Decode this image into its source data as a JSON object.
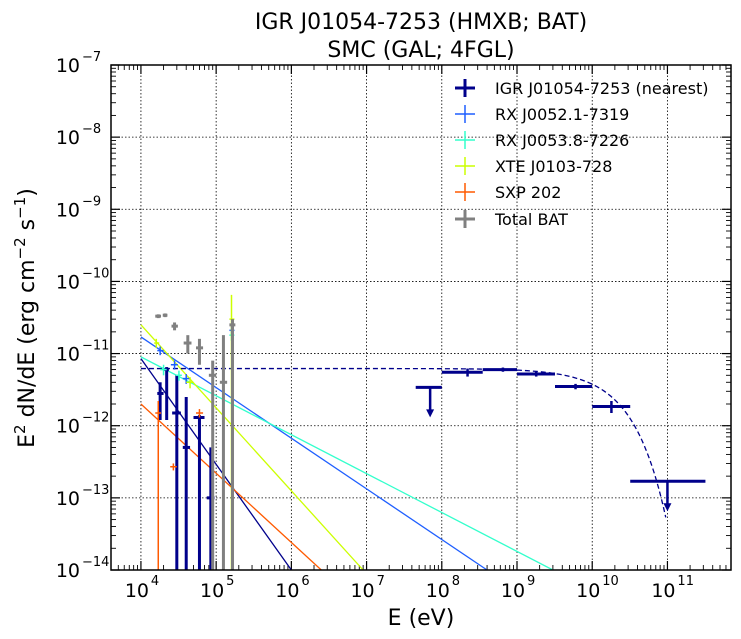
{
  "chart_data": {
    "type": "scatter",
    "title_line1": "IGR J01054-7253 (HMXB; BAT)",
    "title_line2": "SMC (GAL; 4FGL)",
    "xlabel": "E (eV)",
    "ylabel_main": "E",
    "ylabel_sup": "2",
    "ylabel_rest": " dN/dE (erg cm",
    "ylabel_sup2": "−2",
    "ylabel_rest2": " s",
    "ylabel_sup3": "−1",
    "ylabel_close": ")",
    "x_log": true,
    "y_log": true,
    "xlim": [
      4000.0,
      700000000000.0
    ],
    "ylim": [
      1e-14,
      1e-07
    ],
    "x_ticks": [
      4,
      5,
      6,
      7,
      8,
      9,
      10,
      11
    ],
    "y_ticks": [
      -14,
      -13,
      -12,
      -11,
      -10,
      -9,
      -8,
      -7
    ],
    "tick_base": "10",
    "grid": true,
    "legend_position": "top-right",
    "series": [
      {
        "name": "IGR J01054-7253 (nearest)",
        "color": "#00008b",
        "marker": "cross-bold",
        "points": [
          {
            "x": 18000,
            "y": 2.8e-12,
            "xlo": 16500,
            "xhi": 20000,
            "ylo": 1.2e-12,
            "yhi": 4e-12
          },
          {
            "x": 22000,
            "y": 6e-12,
            "xlo": 20500,
            "xhi": 23500,
            "ylo": 1.2e-12,
            "yhi": 6.5e-12
          },
          {
            "x": 30000,
            "y": 1.5e-12,
            "xlo": 26000,
            "xhi": 34000,
            "ylo": 1e-14,
            "yhi": 5e-12
          },
          {
            "x": 40000,
            "y": 5e-13,
            "xlo": 36000,
            "xhi": 45000,
            "ylo": 1e-14,
            "yhi": 2.5e-12
          },
          {
            "x": 60000,
            "y": 1.3e-12,
            "xlo": 50000,
            "xhi": 70000,
            "ylo": 1e-14,
            "yhi": 1.4e-12
          },
          {
            "x": 85000,
            "y": 1e-13,
            "xlo": 75000,
            "xhi": 95000,
            "ylo": 1e-14,
            "yhi": 5e-13
          }
        ]
      },
      {
        "name": "RX J0052.1-7319",
        "color": "#1f5fff",
        "marker": "cross",
        "points": [
          {
            "x": 18000,
            "y": 1.1e-11,
            "xlo": 16500,
            "xhi": 20000,
            "ylo": 9.5e-12,
            "yhi": 1.25e-11
          },
          {
            "x": 28000,
            "y": 7e-12,
            "xlo": 25000,
            "xhi": 31000,
            "ylo": 6e-12,
            "yhi": 8e-12
          },
          {
            "x": 40000,
            "y": 4.5e-12,
            "xlo": 36000,
            "xhi": 45000,
            "ylo": 3.8e-12,
            "yhi": 5.2e-12
          },
          {
            "x": 160000,
            "y": 2.1e-11,
            "xlo": 150000,
            "xhi": 175000,
            "ylo": 1.8e-11,
            "yhi": 2.4e-11
          }
        ]
      },
      {
        "name": "RX J0053.8-7226",
        "color": "#33ffcc",
        "marker": "cross",
        "points": [
          {
            "x": 20000,
            "y": 6e-12,
            "xlo": 18000,
            "xhi": 22000,
            "ylo": 5e-12,
            "yhi": 7e-12
          },
          {
            "x": 32000,
            "y": 5e-12,
            "xlo": 29000,
            "xhi": 35000,
            "ylo": 4.2e-12,
            "yhi": 5.8e-12
          },
          {
            "x": 160000,
            "y": 1.8e-11,
            "xlo": 150000,
            "xhi": 175000,
            "ylo": 1.5e-11,
            "yhi": 2e-11
          }
        ]
      },
      {
        "name": "XTE J0103-728",
        "color": "#ccff00",
        "marker": "cross",
        "points": [
          {
            "x": 16000,
            "y": 1.4e-11,
            "xlo": 15000,
            "xhi": 17500,
            "ylo": 1.2e-11,
            "yhi": 1.6e-11
          },
          {
            "x": 45000,
            "y": 4e-12,
            "xlo": 40000,
            "xhi": 50000,
            "ylo": 3.3e-12,
            "yhi": 4.7e-12
          },
          {
            "x": 160000,
            "y": 3e-11,
            "xlo": 150000,
            "xhi": 175000,
            "ylo": 1e-14,
            "yhi": 6.5e-11
          }
        ]
      },
      {
        "name": "SXP 202",
        "color": "#ff5a00",
        "marker": "cross",
        "points": [
          {
            "x": 17000,
            "y": 1.5e-12,
            "xlo": 15500,
            "xhi": 18500,
            "ylo": 1e-14,
            "yhi": 2.2e-12
          },
          {
            "x": 27000,
            "y": 2.7e-13,
            "xlo": 24500,
            "xhi": 30000,
            "ylo": 2.4e-13,
            "yhi": 3e-13
          },
          {
            "x": 60000,
            "y": 1.5e-12,
            "xlo": 54000,
            "xhi": 67000,
            "ylo": 1.3e-12,
            "yhi": 1.7e-12
          }
        ]
      },
      {
        "name": "Total BAT",
        "color": "#808080",
        "marker": "cross-bold",
        "points": [
          {
            "x": 17000,
            "y": 3.3e-11,
            "xlo": 15500,
            "xhi": 18500,
            "ylo": 3.1e-11,
            "yhi": 3.5e-11
          },
          {
            "x": 21000,
            "y": 3.4e-11,
            "xlo": 19500,
            "xhi": 22500,
            "ylo": 3.2e-11,
            "yhi": 3.6e-11
          },
          {
            "x": 28000,
            "y": 2.4e-11,
            "xlo": 25500,
            "xhi": 31000,
            "ylo": 2.1e-11,
            "yhi": 2.7e-11
          },
          {
            "x": 42000,
            "y": 1.4e-11,
            "xlo": 37000,
            "xhi": 47000,
            "ylo": 1e-11,
            "yhi": 1.8e-11
          },
          {
            "x": 60000,
            "y": 1.2e-11,
            "xlo": 54000,
            "xhi": 67000,
            "ylo": 7e-12,
            "yhi": 1.6e-11
          },
          {
            "x": 90000,
            "y": 5e-12,
            "xlo": 80000,
            "xhi": 100000,
            "ylo": 1e-14,
            "yhi": 8e-12
          },
          {
            "x": 125000,
            "y": 4e-12,
            "xlo": 112000,
            "xhi": 140000,
            "ylo": 1e-14,
            "yhi": 1.8e-11
          },
          {
            "x": 165000,
            "y": 2.5e-11,
            "xlo": 150000,
            "xhi": 180000,
            "ylo": 1e-14,
            "yhi": 3e-11
          }
        ]
      }
    ],
    "fermi_points": [
      {
        "x": 70000000.0,
        "y": 3.4e-12,
        "xlo": 45000000.0,
        "xhi": 100000000.0,
        "upper_limit": true
      },
      {
        "x": 220000000.0,
        "y": 5.5e-12,
        "xlo": 100000000.0,
        "xhi": 350000000.0,
        "ylo": 4.8e-12,
        "yhi": 6.2e-12
      },
      {
        "x": 650000000.0,
        "y": 6e-12,
        "xlo": 350000000.0,
        "xhi": 1000000000.0,
        "ylo": 5.6e-12,
        "yhi": 6.4e-12
      },
      {
        "x": 1800000000.0,
        "y": 5.2e-12,
        "xlo": 1000000000.0,
        "xhi": 3200000000.0,
        "ylo": 4.8e-12,
        "yhi": 5.6e-12
      },
      {
        "x": 6000000000.0,
        "y": 3.5e-12,
        "xlo": 3200000000.0,
        "xhi": 10000000000.0,
        "ylo": 3.2e-12,
        "yhi": 3.8e-12
      },
      {
        "x": 18000000000.0,
        "y": 1.85e-12,
        "xlo": 10000000000.0,
        "xhi": 32000000000.0,
        "ylo": 1.5e-12,
        "yhi": 2.2e-12
      },
      {
        "x": 100000000000.0,
        "y": 1.7e-13,
        "xlo": 32000000000.0,
        "xhi": 320000000000.0,
        "upper_limit": true
      }
    ],
    "fermi_model": {
      "color": "#00008b",
      "style": "dashed",
      "level": 6.2e-12,
      "cutoff": 20000000000.0,
      "x_start": 10000.0,
      "x_end": 95000000000.0
    },
    "power_laws": [
      {
        "color": "#00008b",
        "x0": 10000.0,
        "y0": 8.5e-12,
        "x1": 1000000.0,
        "y1": 1e-14
      },
      {
        "color": "#1f5fff",
        "x0": 10000.0,
        "y0": 1.7e-11,
        "x1": 400000000.0,
        "y1": 1e-14
      },
      {
        "color": "#33ffcc",
        "x0": 10000.0,
        "y0": 9e-12,
        "x1": 3000000000.0,
        "y1": 1e-14
      },
      {
        "color": "#ccff00",
        "x0": 10000.0,
        "y0": 2.5e-11,
        "x1": 9000000.0,
        "y1": 1e-14
      },
      {
        "color": "#ff5a00",
        "x0": 10000.0,
        "y0": 2e-12,
        "x1": 2500000.0,
        "y1": 1e-14
      }
    ]
  }
}
